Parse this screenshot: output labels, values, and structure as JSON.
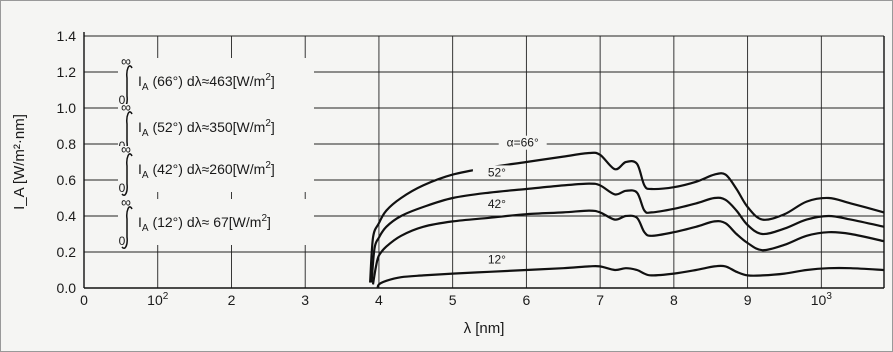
{
  "chart_data": {
    "type": "line",
    "xlabel": "λ [nm]",
    "ylabel": "I_A [W/m²·nm]",
    "xlim": [
      0,
      10.85
    ],
    "ylim": [
      0,
      1.4
    ],
    "grid": true,
    "x_ticks": [
      {
        "value": 0,
        "label": "0"
      },
      {
        "value": 1,
        "label": "10",
        "sup": "2"
      },
      {
        "value": 2,
        "label": "2"
      },
      {
        "value": 3,
        "label": "3"
      },
      {
        "value": 4,
        "label": "4"
      },
      {
        "value": 5,
        "label": "5"
      },
      {
        "value": 6,
        "label": "6"
      },
      {
        "value": 7,
        "label": "7"
      },
      {
        "value": 8,
        "label": "8"
      },
      {
        "value": 9,
        "label": "9"
      },
      {
        "value": 10,
        "label": "10",
        "sup": "3"
      }
    ],
    "y_ticks": [
      {
        "value": 0.0,
        "label": "0.0"
      },
      {
        "value": 0.2,
        "label": "0.2"
      },
      {
        "value": 0.4,
        "label": "0.4"
      },
      {
        "value": 0.6,
        "label": "0.6"
      },
      {
        "value": 0.8,
        "label": "0.8"
      },
      {
        "value": 1.0,
        "label": "1.0"
      },
      {
        "value": 1.2,
        "label": "1.2"
      },
      {
        "value": 1.4,
        "label": "1.4"
      }
    ],
    "annotations": [
      {
        "angle": "66°",
        "total": "≈463",
        "unit": "[W/m",
        "unit_sup": "2",
        "unit_end": "]"
      },
      {
        "angle": "52°",
        "total": "≈350",
        "unit": "[W/m",
        "unit_sup": "2",
        "unit_end": "]"
      },
      {
        "angle": "42°",
        "total": "≈260",
        "unit": "[W/m",
        "unit_sup": "2",
        "unit_end": "]"
      },
      {
        "angle": "12°",
        "total": "≈ 67",
        "unit": "[W/m",
        "unit_sup": "2",
        "unit_end": "]"
      }
    ],
    "series": [
      {
        "name": "α=66°",
        "x": [
          3.88,
          3.92,
          4.0,
          4.1,
          4.3,
          4.6,
          5.0,
          5.5,
          6.0,
          6.5,
          6.85,
          7.0,
          7.2,
          7.35,
          7.5,
          7.6,
          7.7,
          8.0,
          8.3,
          8.55,
          8.7,
          8.85,
          9.0,
          9.2,
          9.5,
          9.8,
          10.1,
          10.4,
          10.85
        ],
        "y": [
          0.03,
          0.28,
          0.36,
          0.43,
          0.5,
          0.57,
          0.63,
          0.67,
          0.7,
          0.73,
          0.75,
          0.74,
          0.66,
          0.7,
          0.69,
          0.57,
          0.55,
          0.56,
          0.59,
          0.63,
          0.63,
          0.55,
          0.45,
          0.38,
          0.41,
          0.48,
          0.5,
          0.47,
          0.42
        ]
      },
      {
        "name": "52°",
        "x": [
          3.9,
          3.94,
          4.0,
          4.1,
          4.3,
          4.6,
          5.0,
          5.5,
          6.0,
          6.5,
          6.85,
          7.0,
          7.2,
          7.35,
          7.5,
          7.6,
          7.7,
          8.0,
          8.3,
          8.55,
          8.7,
          8.85,
          9.0,
          9.2,
          9.5,
          9.8,
          10.1,
          10.4,
          10.85
        ],
        "y": [
          0.03,
          0.22,
          0.28,
          0.34,
          0.4,
          0.45,
          0.5,
          0.53,
          0.55,
          0.57,
          0.58,
          0.57,
          0.52,
          0.54,
          0.53,
          0.43,
          0.42,
          0.44,
          0.47,
          0.5,
          0.49,
          0.43,
          0.35,
          0.3,
          0.33,
          0.38,
          0.4,
          0.38,
          0.34
        ]
      },
      {
        "name": "42°",
        "x": [
          3.92,
          3.96,
          4.0,
          4.1,
          4.3,
          4.6,
          5.0,
          5.5,
          6.0,
          6.5,
          6.85,
          7.0,
          7.2,
          7.35,
          7.5,
          7.6,
          7.7,
          8.0,
          8.3,
          8.55,
          8.7,
          8.85,
          9.0,
          9.2,
          9.5,
          9.8,
          10.1,
          10.4,
          10.85
        ],
        "y": [
          0.02,
          0.12,
          0.18,
          0.23,
          0.29,
          0.34,
          0.37,
          0.39,
          0.41,
          0.42,
          0.43,
          0.42,
          0.38,
          0.4,
          0.39,
          0.31,
          0.29,
          0.31,
          0.34,
          0.37,
          0.36,
          0.3,
          0.25,
          0.21,
          0.24,
          0.29,
          0.31,
          0.3,
          0.26
        ]
      },
      {
        "name": "12°",
        "x": [
          3.98,
          4.0,
          4.1,
          4.3,
          4.6,
          5.0,
          5.5,
          6.0,
          6.5,
          6.85,
          7.0,
          7.2,
          7.35,
          7.5,
          7.6,
          7.7,
          8.0,
          8.3,
          8.55,
          8.7,
          8.85,
          9.0,
          9.2,
          9.5,
          9.8,
          10.1,
          10.4,
          10.85
        ],
        "y": [
          0.0,
          0.02,
          0.04,
          0.06,
          0.07,
          0.08,
          0.09,
          0.1,
          0.11,
          0.12,
          0.12,
          0.1,
          0.11,
          0.1,
          0.08,
          0.07,
          0.08,
          0.1,
          0.12,
          0.12,
          0.09,
          0.07,
          0.07,
          0.08,
          0.1,
          0.11,
          0.11,
          0.1
        ]
      }
    ]
  }
}
